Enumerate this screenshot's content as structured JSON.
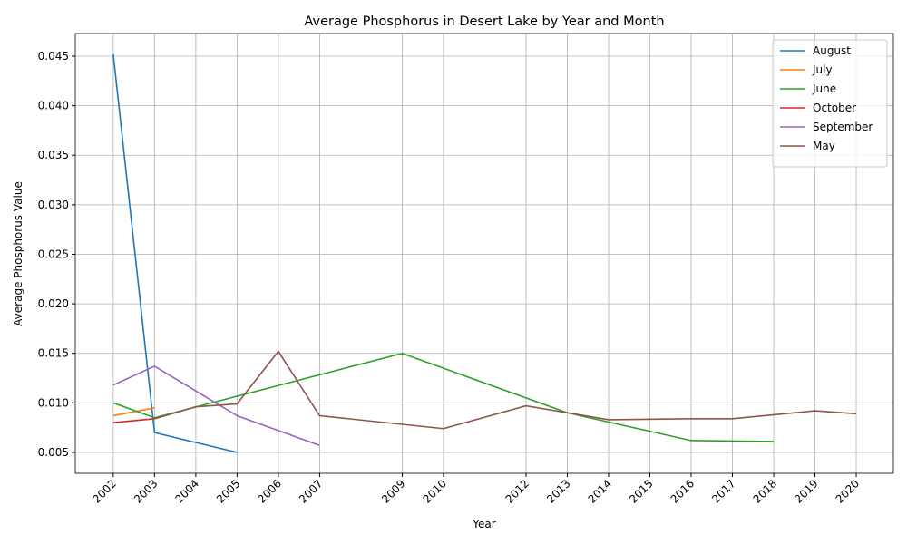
{
  "chart_data": {
    "type": "line",
    "title": "Average Phosphorus in Desert Lake by Year and Month",
    "x_label": "Year",
    "y_label": "Average Phosphorus Value",
    "xlim": [
      2001.08,
      2020.9
    ],
    "ylim": [
      0.00289,
      0.04729
    ],
    "xticks": [
      2002,
      2003,
      2004,
      2005,
      2006,
      2007,
      2009,
      2010,
      2012,
      2013,
      2014,
      2015,
      2016,
      2017,
      2018,
      2019,
      2020
    ],
    "yticks": [
      0.005,
      {
        "value": 0.01,
        "label": "0.010"
      },
      0.015,
      {
        "value": 0.02,
        "label": "0.020"
      },
      0.025,
      {
        "value": 0.03,
        "label": "0.030"
      },
      0.035,
      {
        "value": 0.04,
        "label": "0.040"
      },
      0.045
    ],
    "grid": true,
    "legend": "upper-right",
    "series": [
      {
        "name": "August",
        "color": "#1f77b4",
        "x": [
          2002,
          2003,
          2005
        ],
        "values": [
          0.0452,
          0.007,
          0.005
        ]
      },
      {
        "name": "July",
        "color": "#ff7f0e",
        "x": [
          2002,
          2003
        ],
        "values": [
          0.0087,
          0.0095
        ]
      },
      {
        "name": "June",
        "color": "#2ca02c",
        "x": [
          2002,
          2003,
          2009,
          2013,
          2016,
          2017,
          2018
        ],
        "values": [
          0.01,
          0.0085,
          0.015,
          0.009,
          0.0062,
          0.00615,
          0.0061
        ]
      },
      {
        "name": "October",
        "color": "#d62728",
        "x": [
          2002,
          2003
        ],
        "values": [
          0.008,
          0.0084
        ]
      },
      {
        "name": "September",
        "color": "#9467bd",
        "x": [
          2002,
          2003,
          2005,
          2007
        ],
        "values": [
          0.0118,
          0.0137,
          0.0087,
          0.0057
        ]
      },
      {
        "name": "May",
        "color": "#8c564b",
        "x": [
          2003,
          2004,
          2005,
          2006,
          2007,
          2010,
          2012,
          2013,
          2014,
          2016,
          2017,
          2019,
          2020
        ],
        "values": [
          0.0084,
          0.0096,
          0.0099,
          0.0152,
          0.0087,
          0.0074,
          0.0097,
          0.009,
          0.0083,
          0.0084,
          0.0084,
          0.0092,
          0.0089
        ]
      }
    ]
  }
}
